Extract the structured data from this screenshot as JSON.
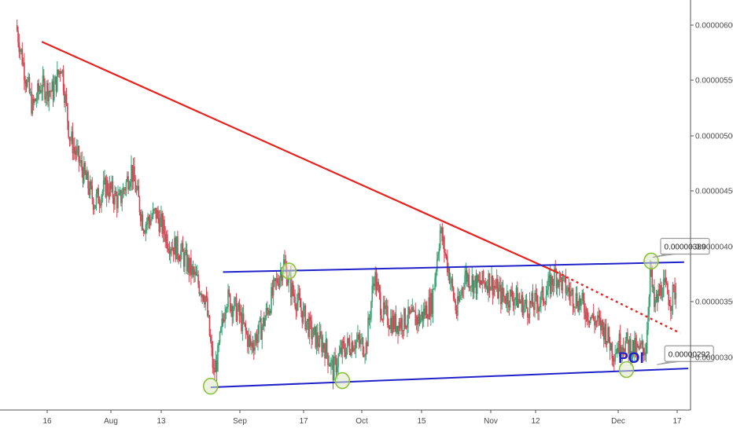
{
  "colors": {
    "up": "#3aa373",
    "down": "#d9404f",
    "trendline": "#e52420",
    "channel": "#1f22c9",
    "touch_fill": "#dde8c4",
    "touch_stroke": "#8cc23a",
    "poi": "#1f22c9",
    "axis": "#555555",
    "callout_border": "#9a9a9a"
  },
  "chart_data": {
    "type": "candlestick",
    "title": "",
    "xlabel": "",
    "ylabel": "",
    "ylim": [
      2.5e-06,
      6.3e-06
    ],
    "grid": false,
    "x_ticks": [
      "16",
      "Aug",
      "13",
      "Sep",
      "17",
      "Oct",
      "15",
      "Nov",
      "12",
      "Dec",
      "17"
    ],
    "y_ticks": [
      "0.00000600",
      "0.00000550",
      "0.00000500",
      "0.00000450",
      "0.00000400",
      "0.00000350",
      "0.00000300"
    ],
    "price_path": [
      [
        "2018-07-09",
        6e-06
      ],
      [
        "2018-07-11",
        5.6e-06
      ],
      [
        "2018-07-13",
        5.25e-06
      ],
      [
        "2018-07-15",
        5.45e-06
      ],
      [
        "2018-07-18",
        5.4e-06
      ],
      [
        "2018-07-20",
        5.65e-06
      ],
      [
        "2018-07-22",
        5e-06
      ],
      [
        "2018-07-25",
        4.7e-06
      ],
      [
        "2018-07-28",
        4.4e-06
      ],
      [
        "2018-07-31",
        4.55e-06
      ],
      [
        "2018-08-03",
        4.4e-06
      ],
      [
        "2018-08-06",
        4.7e-06
      ],
      [
        "2018-08-09",
        4.2e-06
      ],
      [
        "2018-08-12",
        4.3e-06
      ],
      [
        "2018-08-15",
        4.05e-06
      ],
      [
        "2018-08-18",
        3.95e-06
      ],
      [
        "2018-08-21",
        3.75e-06
      ],
      [
        "2018-08-24",
        3.55e-06
      ],
      [
        "2018-08-26",
        2.85e-06
      ],
      [
        "2018-08-27",
        3e-06
      ],
      [
        "2018-08-29",
        3.55e-06
      ],
      [
        "2018-09-01",
        3.4e-06
      ],
      [
        "2018-09-04",
        3.1e-06
      ],
      [
        "2018-09-07",
        3.3e-06
      ],
      [
        "2018-09-10",
        3.65e-06
      ],
      [
        "2018-09-12",
        3.85e-06
      ],
      [
        "2018-09-14",
        3.6e-06
      ],
      [
        "2018-09-16",
        3.45e-06
      ],
      [
        "2018-09-19",
        3.2e-06
      ],
      [
        "2018-09-22",
        3.1e-06
      ],
      [
        "2018-09-24",
        2.88e-06
      ],
      [
        "2018-09-26",
        3.05e-06
      ],
      [
        "2018-09-29",
        3.15e-06
      ],
      [
        "2018-10-02",
        3.1e-06
      ],
      [
        "2018-10-04",
        3.75e-06
      ],
      [
        "2018-10-06",
        3.4e-06
      ],
      [
        "2018-10-09",
        3.3e-06
      ],
      [
        "2018-10-12",
        3.35e-06
      ],
      [
        "2018-10-15",
        3.35e-06
      ],
      [
        "2018-10-18",
        3.5e-06
      ],
      [
        "2018-10-20",
        4.15e-06
      ],
      [
        "2018-10-22",
        3.8e-06
      ],
      [
        "2018-10-24",
        3.4e-06
      ],
      [
        "2018-10-26",
        3.75e-06
      ],
      [
        "2018-10-29",
        3.65e-06
      ],
      [
        "2018-11-01",
        3.7e-06
      ],
      [
        "2018-11-04",
        3.55e-06
      ],
      [
        "2018-11-07",
        3.55e-06
      ],
      [
        "2018-11-10",
        3.45e-06
      ],
      [
        "2018-11-13",
        3.5e-06
      ],
      [
        "2018-11-15",
        3.6e-06
      ],
      [
        "2018-11-17",
        3.75e-06
      ],
      [
        "2018-11-20",
        3.6e-06
      ],
      [
        "2018-11-23",
        3.5e-06
      ],
      [
        "2018-11-26",
        3.35e-06
      ],
      [
        "2018-11-29",
        3.25e-06
      ],
      [
        "2018-12-01",
        3.05e-06
      ],
      [
        "2018-12-03",
        3.15e-06
      ],
      [
        "2018-12-05",
        3.1e-06
      ],
      [
        "2018-12-07",
        3.05e-06
      ],
      [
        "2018-12-09",
        3.1e-06
      ],
      [
        "2018-12-10",
        3.8e-06
      ],
      [
        "2018-12-11",
        3.45e-06
      ],
      [
        "2018-12-13",
        3.65e-06
      ],
      [
        "2018-12-15",
        3.52e-06
      ],
      [
        "2018-12-16",
        3.6e-06
      ]
    ],
    "annotations": {
      "descending_trendline": {
        "solid": {
          "start": [
            "2018-07-15",
            5.85e-06
          ],
          "end": [
            "2018-11-17",
            3.77e-06
          ]
        },
        "dotted": {
          "start": [
            "2018-11-17",
            3.77e-06
          ],
          "end": [
            "2018-12-17",
            3.22e-06
          ]
        }
      },
      "upper_channel": {
        "start": [
          "2018-08-28",
          3.77e-06
        ],
        "end": [
          "2018-12-18",
          3.86e-06
        ]
      },
      "lower_channel": {
        "start": [
          "2018-08-25",
          2.73e-06
        ],
        "end": [
          "2018-12-19",
          2.9e-06
        ]
      },
      "touch_points": [
        [
          "2018-08-25",
          2.74e-06
        ],
        [
          "2018-09-13",
          3.78e-06
        ],
        [
          "2018-09-26",
          2.79e-06
        ],
        [
          "2018-12-04",
          2.89e-06
        ],
        [
          "2018-12-10",
          3.87e-06
        ]
      ],
      "callouts": [
        {
          "label": "0.00000389",
          "at": [
            "2018-12-10",
            3.89e-06
          ]
        },
        {
          "label": "0.00000292",
          "at": [
            "2018-12-11",
            2.92e-06
          ]
        }
      ],
      "poi_label": "POI"
    }
  }
}
